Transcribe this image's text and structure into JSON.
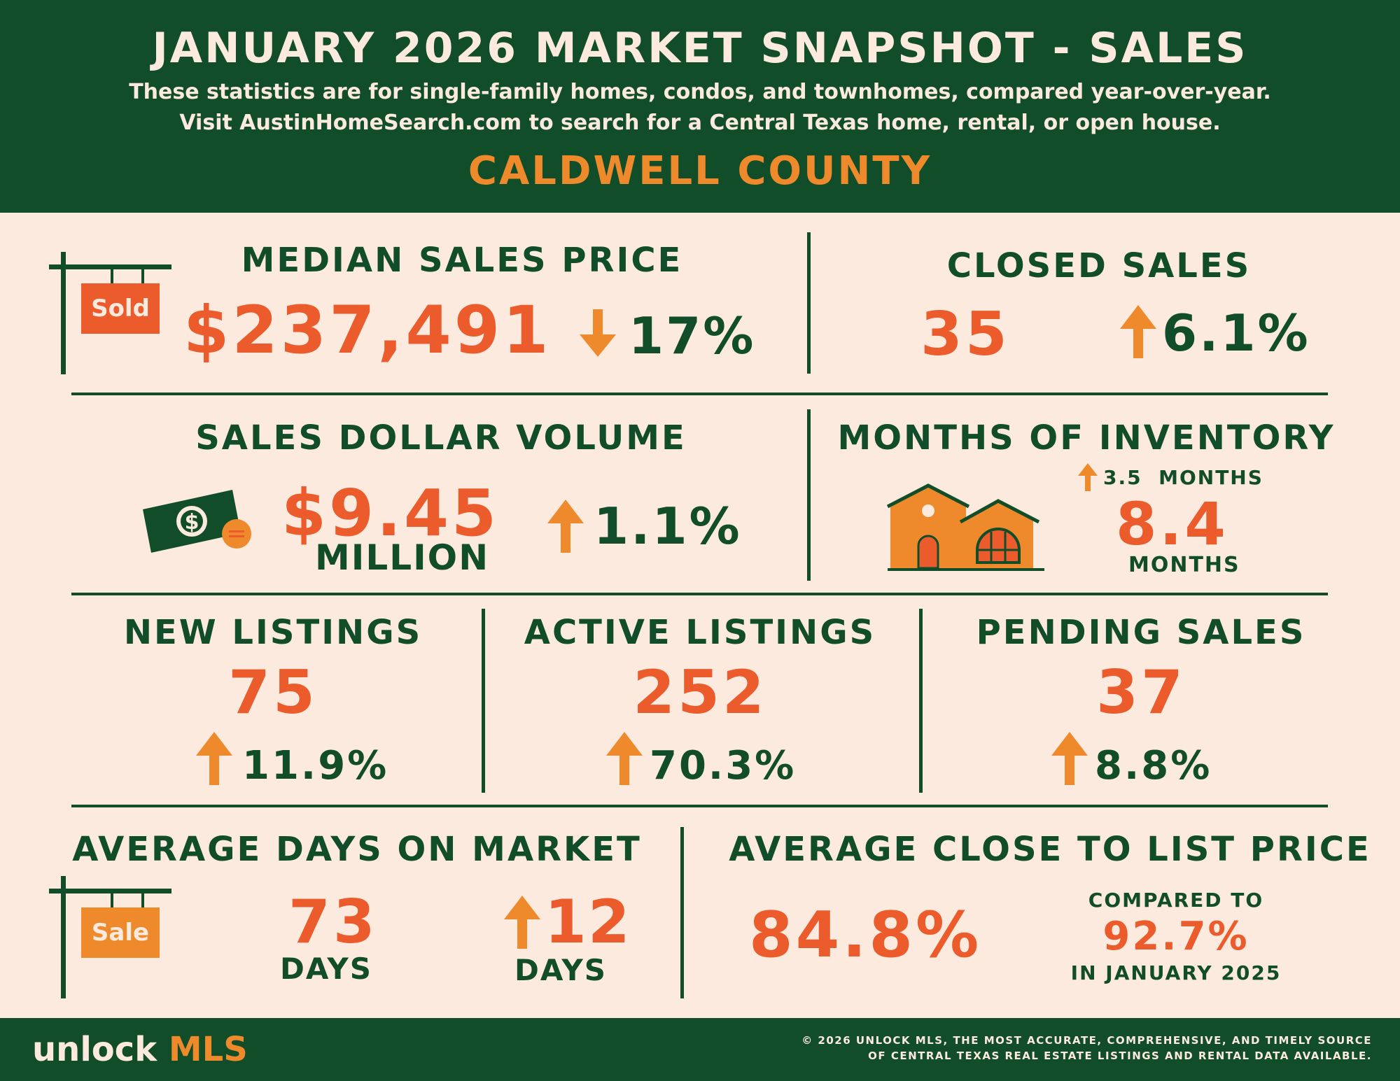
{
  "header": {
    "title": "JANUARY 2026 MARKET SNAPSHOT - SALES",
    "subtitle_line1": "These statistics are for single-family homes, condos, and townhomes, compared year-over-year.",
    "subtitle_line2": "Visit AustinHomeSearch.com to search for a Central Texas home, rental, or open house.",
    "county": "CALDWELL COUNTY"
  },
  "median_sales_price": {
    "label": "MEDIAN SALES PRICE",
    "value": "$237,491",
    "change": "17%",
    "direction": "down",
    "sign_text": "Sold"
  },
  "closed_sales": {
    "label": "CLOSED SALES",
    "value": "35",
    "change": "6.1%",
    "direction": "up"
  },
  "sales_dollar_volume": {
    "label": "SALES DOLLAR VOLUME",
    "value": "$9.45",
    "unit": "MILLION",
    "change": "1.1%",
    "direction": "up"
  },
  "months_of_inventory": {
    "label": "MONTHS OF INVENTORY",
    "change": "3.5  MONTHS",
    "direction": "up",
    "value": "8.4",
    "unit": "MONTHS"
  },
  "new_listings": {
    "label": "NEW LISTINGS",
    "value": "75",
    "change": "11.9%",
    "direction": "up"
  },
  "active_listings": {
    "label": "ACTIVE LISTINGS",
    "value": "252",
    "change": "70.3%",
    "direction": "up"
  },
  "pending_sales": {
    "label": "PENDING SALES",
    "value": "37",
    "change": "8.8%",
    "direction": "up"
  },
  "average_days_on_market": {
    "label": "AVERAGE DAYS ON MARKET",
    "value": "73",
    "unit": "DAYS",
    "change": "12",
    "change_unit": "DAYS",
    "direction": "up",
    "sign_text": "Sale"
  },
  "average_close_to_list": {
    "label": "AVERAGE CLOSE TO LIST PRICE",
    "value": "84.8%",
    "compared_label": "COMPARED TO",
    "compared_value": "92.7%",
    "compared_period": "IN JANUARY 2025"
  },
  "footer": {
    "brand_part1": "unlock",
    "brand_part2": "MLS",
    "copyright_line1": "© 2026 UNLOCK MLS, THE MOST ACCURATE, COMPREHENSIVE, AND TIMELY SOURCE",
    "copyright_line2": "OF CENTRAL TEXAS REAL ESTATE LISTINGS AND RENTAL DATA AVAILABLE."
  },
  "colors": {
    "green": "#124d2a",
    "orange": "#ec5b2b",
    "light_orange": "#ee8a2c",
    "cream": "#fbeadd"
  },
  "icons": [
    "sold-sign-icon",
    "arrow-down-icon",
    "arrow-up-icon",
    "money-bill-icon",
    "coin-icon",
    "house-icon",
    "sale-sign-icon"
  ]
}
